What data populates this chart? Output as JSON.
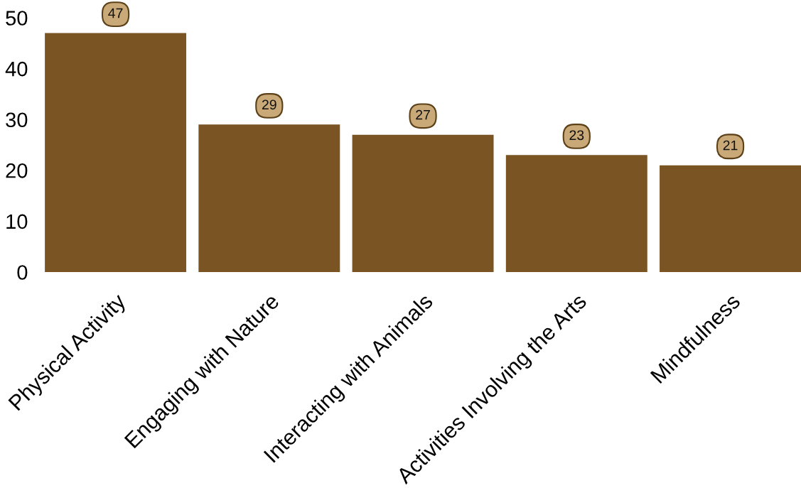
{
  "chart_data": {
    "type": "bar",
    "categories": [
      "Physical Activity",
      "Engaging with Nature",
      "Interacting with Animals",
      "Activities Involving the Arts",
      "Mindfulness"
    ],
    "values": [
      47,
      29,
      27,
      23,
      21
    ],
    "color": "#7b5424",
    "ylim": [
      0,
      50
    ],
    "yticks": [
      0,
      10,
      20,
      30,
      40,
      50
    ],
    "data_labels": true,
    "grid": false
  }
}
